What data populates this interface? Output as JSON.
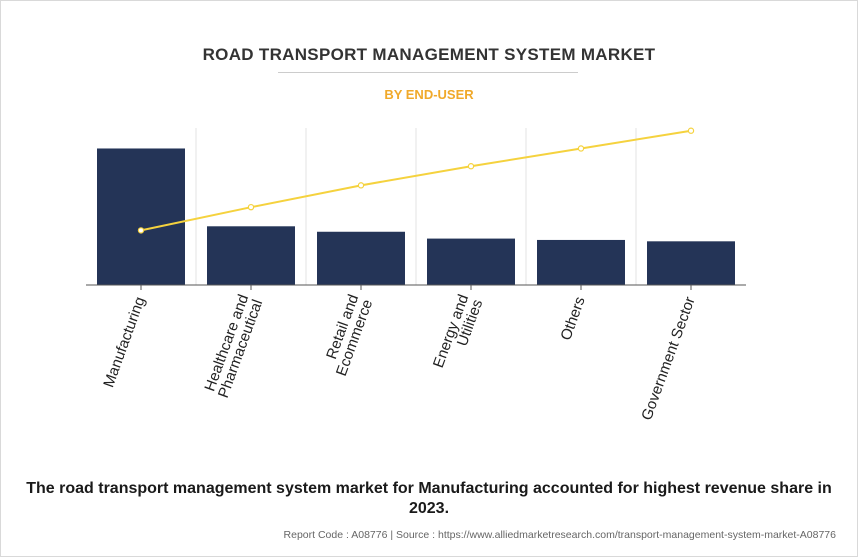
{
  "header": {
    "title": "ROAD TRANSPORT MANAGEMENT SYSTEM MARKET",
    "subtitle": "BY END-USER"
  },
  "chart_data": {
    "type": "bar",
    "categories": [
      "Manufacturing",
      "Healthcare and Pharmaceutical",
      "Retail and Ecommerce",
      "Energy and Utilities",
      "Others",
      "Government Sector"
    ],
    "category_lines": [
      [
        "Manufacturing"
      ],
      [
        "Healthcare and",
        "Pharmaceutical"
      ],
      [
        "Retail and",
        "Ecommerce"
      ],
      [
        "Energy and",
        "Utilities"
      ],
      [
        "Others"
      ],
      [
        "Government Sector"
      ]
    ],
    "series": [
      {
        "type": "bar",
        "values": [
          100,
          43,
          39,
          34,
          33,
          32
        ]
      },
      {
        "type": "line",
        "values": [
          40,
          57,
          73,
          87,
          100,
          113
        ]
      }
    ],
    "ylim": [
      0,
      115
    ],
    "grid": true,
    "colors": {
      "bar": "#243457",
      "line": "#f5d23e",
      "grid": "#e3e3e3",
      "axis": "#555555"
    }
  },
  "caption": "The road transport management system market for Manufacturing accounted for highest revenue share in 2023.",
  "footer": "Report Code : A08776  |  Source : https://www.alliedmarketresearch.com/transport-management-system-market-A08776"
}
